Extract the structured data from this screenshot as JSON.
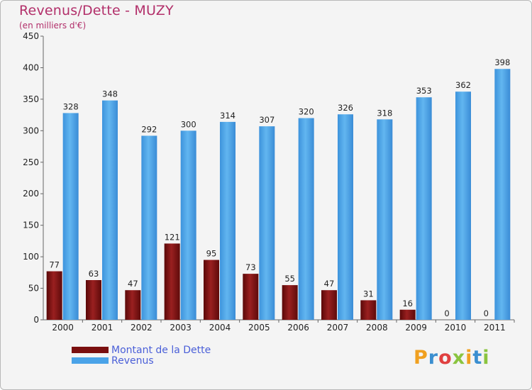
{
  "header": {
    "title": "Revenus/Dette - MUZY",
    "subtitle": "(en milliers d'€)"
  },
  "legend": {
    "items": [
      {
        "label": "Montant de la Dette",
        "color": "#7a0f0f"
      },
      {
        "label": "Revenus",
        "color": "#4aa3e8"
      }
    ]
  },
  "logo": {
    "text": "Proxiti",
    "letter_colors": [
      "#f0a020",
      "#3b8fd0",
      "#e04040",
      "#8ac43f",
      "#f0a020",
      "#3b8fd0",
      "#8ac43f"
    ]
  },
  "chart_data": {
    "type": "bar",
    "title": "Revenus/Dette - MUZY",
    "subtitle": "(en milliers d'€)",
    "categories": [
      "2000",
      "2001",
      "2002",
      "2003",
      "2004",
      "2005",
      "2006",
      "2007",
      "2008",
      "2009",
      "2010",
      "2011"
    ],
    "series": [
      {
        "name": "Montant de la Dette",
        "color": "#7a0f0f",
        "values": [
          77,
          63,
          47,
          121,
          95,
          73,
          55,
          47,
          31,
          16,
          0,
          0
        ]
      },
      {
        "name": "Revenus",
        "color": "#4aa3e8",
        "values": [
          328,
          348,
          292,
          300,
          314,
          307,
          320,
          326,
          318,
          353,
          362,
          398
        ]
      }
    ],
    "ylim": [
      0,
      450
    ],
    "yticks": [
      0,
      50,
      100,
      150,
      200,
      250,
      300,
      350,
      400,
      450
    ],
    "grid": false,
    "legend_position": "bottom-left"
  }
}
